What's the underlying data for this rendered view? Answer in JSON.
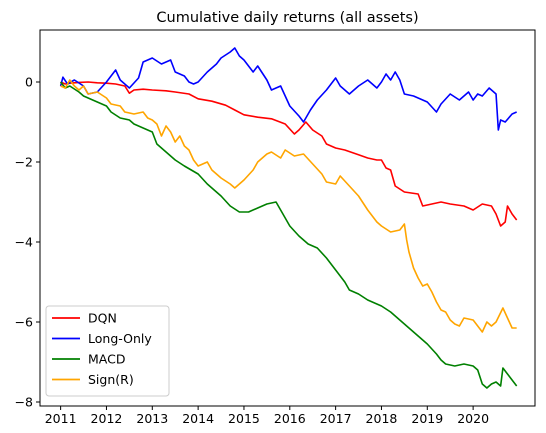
{
  "chart_data": {
    "type": "line",
    "title": "Cumulative daily returns (all assets)",
    "xlabel": "",
    "ylabel": "",
    "x_ticks": [
      "2011",
      "2012",
      "2013",
      "2014",
      "2015",
      "2016",
      "2017",
      "2018",
      "2019",
      "2020"
    ],
    "y_ticks": [
      "0",
      "−2",
      "−4",
      "−6",
      "−8"
    ],
    "xlim": [
      2010.55,
      2021.35
    ],
    "ylim": [
      -8.1,
      1.3
    ],
    "grid": false,
    "legend_position": "lower-left",
    "series": [
      {
        "name": "DQN",
        "color": "#ff0000",
        "points": [
          [
            2011.0,
            0.0
          ],
          [
            2011.1,
            -0.05
          ],
          [
            2011.2,
            -0.03
          ],
          [
            2011.4,
            -0.01
          ],
          [
            2011.6,
            0.0
          ],
          [
            2011.8,
            -0.02
          ],
          [
            2012.0,
            -0.03
          ],
          [
            2012.2,
            -0.05
          ],
          [
            2012.4,
            -0.1
          ],
          [
            2012.5,
            -0.28
          ],
          [
            2012.6,
            -0.2
          ],
          [
            2012.8,
            -0.18
          ],
          [
            2013.0,
            -0.2
          ],
          [
            2013.3,
            -0.22
          ],
          [
            2013.5,
            -0.25
          ],
          [
            2013.8,
            -0.3
          ],
          [
            2014.0,
            -0.42
          ],
          [
            2014.3,
            -0.48
          ],
          [
            2014.6,
            -0.58
          ],
          [
            2014.8,
            -0.7
          ],
          [
            2015.0,
            -0.82
          ],
          [
            2015.3,
            -0.88
          ],
          [
            2015.6,
            -0.92
          ],
          [
            2015.9,
            -1.05
          ],
          [
            2016.1,
            -1.3
          ],
          [
            2016.2,
            -1.2
          ],
          [
            2016.35,
            -1.0
          ],
          [
            2016.5,
            -1.2
          ],
          [
            2016.7,
            -1.35
          ],
          [
            2016.8,
            -1.55
          ],
          [
            2017.0,
            -1.65
          ],
          [
            2017.2,
            -1.7
          ],
          [
            2017.5,
            -1.82
          ],
          [
            2017.7,
            -1.9
          ],
          [
            2017.9,
            -1.95
          ],
          [
            2018.0,
            -1.95
          ],
          [
            2018.1,
            -2.15
          ],
          [
            2018.2,
            -2.2
          ],
          [
            2018.3,
            -2.6
          ],
          [
            2018.5,
            -2.75
          ],
          [
            2018.8,
            -2.8
          ],
          [
            2018.9,
            -3.1
          ],
          [
            2019.1,
            -3.05
          ],
          [
            2019.3,
            -3.0
          ],
          [
            2019.5,
            -3.05
          ],
          [
            2019.8,
            -3.1
          ],
          [
            2020.0,
            -3.2
          ],
          [
            2020.2,
            -3.05
          ],
          [
            2020.4,
            -3.1
          ],
          [
            2020.5,
            -3.3
          ],
          [
            2020.6,
            -3.6
          ],
          [
            2020.7,
            -3.5
          ],
          [
            2020.75,
            -3.1
          ],
          [
            2020.85,
            -3.3
          ],
          [
            2020.95,
            -3.45
          ]
        ]
      },
      {
        "name": "Long-Only",
        "color": "#0000ff",
        "points": [
          [
            2011.0,
            -0.1
          ],
          [
            2011.05,
            0.12
          ],
          [
            2011.15,
            -0.05
          ],
          [
            2011.3,
            0.05
          ],
          [
            2011.5,
            -0.1
          ],
          [
            2011.6,
            -0.3
          ],
          [
            2011.8,
            -0.25
          ],
          [
            2012.0,
            0.0
          ],
          [
            2012.2,
            0.3
          ],
          [
            2012.3,
            0.05
          ],
          [
            2012.5,
            -0.15
          ],
          [
            2012.7,
            0.1
          ],
          [
            2012.8,
            0.5
          ],
          [
            2013.0,
            0.6
          ],
          [
            2013.2,
            0.45
          ],
          [
            2013.4,
            0.55
          ],
          [
            2013.5,
            0.25
          ],
          [
            2013.7,
            0.15
          ],
          [
            2013.8,
            0.0
          ],
          [
            2013.9,
            -0.05
          ],
          [
            2014.0,
            0.0
          ],
          [
            2014.2,
            0.25
          ],
          [
            2014.4,
            0.45
          ],
          [
            2014.5,
            0.6
          ],
          [
            2014.7,
            0.75
          ],
          [
            2014.8,
            0.85
          ],
          [
            2014.9,
            0.65
          ],
          [
            2015.0,
            0.55
          ],
          [
            2015.2,
            0.25
          ],
          [
            2015.3,
            0.4
          ],
          [
            2015.5,
            0.05
          ],
          [
            2015.6,
            -0.2
          ],
          [
            2015.8,
            -0.1
          ],
          [
            2016.0,
            -0.6
          ],
          [
            2016.2,
            -0.85
          ],
          [
            2016.3,
            -1.0
          ],
          [
            2016.45,
            -0.7
          ],
          [
            2016.6,
            -0.45
          ],
          [
            2016.8,
            -0.2
          ],
          [
            2017.0,
            0.1
          ],
          [
            2017.1,
            -0.1
          ],
          [
            2017.3,
            -0.3
          ],
          [
            2017.5,
            -0.1
          ],
          [
            2017.7,
            0.05
          ],
          [
            2017.9,
            -0.15
          ],
          [
            2018.0,
            0.0
          ],
          [
            2018.1,
            0.2
          ],
          [
            2018.2,
            0.05
          ],
          [
            2018.3,
            0.25
          ],
          [
            2018.4,
            0.05
          ],
          [
            2018.5,
            -0.3
          ],
          [
            2018.7,
            -0.35
          ],
          [
            2018.8,
            -0.4
          ],
          [
            2019.0,
            -0.5
          ],
          [
            2019.2,
            -0.75
          ],
          [
            2019.3,
            -0.55
          ],
          [
            2019.5,
            -0.3
          ],
          [
            2019.7,
            -0.45
          ],
          [
            2019.9,
            -0.25
          ],
          [
            2020.0,
            -0.45
          ],
          [
            2020.1,
            -0.3
          ],
          [
            2020.2,
            -0.35
          ],
          [
            2020.35,
            -0.15
          ],
          [
            2020.45,
            -0.25
          ],
          [
            2020.5,
            -0.3
          ],
          [
            2020.55,
            -1.2
          ],
          [
            2020.6,
            -0.95
          ],
          [
            2020.7,
            -1.0
          ],
          [
            2020.85,
            -0.8
          ],
          [
            2020.95,
            -0.75
          ]
        ]
      },
      {
        "name": "MACD",
        "color": "#008000",
        "points": [
          [
            2011.0,
            0.0
          ],
          [
            2011.1,
            -0.15
          ],
          [
            2011.2,
            -0.1
          ],
          [
            2011.4,
            -0.25
          ],
          [
            2011.5,
            -0.35
          ],
          [
            2011.7,
            -0.45
          ],
          [
            2011.8,
            -0.5
          ],
          [
            2012.0,
            -0.6
          ],
          [
            2012.1,
            -0.75
          ],
          [
            2012.3,
            -0.9
          ],
          [
            2012.5,
            -0.95
          ],
          [
            2012.6,
            -1.05
          ],
          [
            2012.8,
            -1.15
          ],
          [
            2013.0,
            -1.25
          ],
          [
            2013.1,
            -1.55
          ],
          [
            2013.3,
            -1.75
          ],
          [
            2013.5,
            -1.95
          ],
          [
            2013.7,
            -2.1
          ],
          [
            2014.0,
            -2.3
          ],
          [
            2014.2,
            -2.55
          ],
          [
            2014.5,
            -2.85
          ],
          [
            2014.7,
            -3.1
          ],
          [
            2014.9,
            -3.25
          ],
          [
            2015.1,
            -3.25
          ],
          [
            2015.3,
            -3.15
          ],
          [
            2015.5,
            -3.05
          ],
          [
            2015.7,
            -3.0
          ],
          [
            2015.8,
            -3.2
          ],
          [
            2016.0,
            -3.6
          ],
          [
            2016.2,
            -3.85
          ],
          [
            2016.4,
            -4.05
          ],
          [
            2016.6,
            -4.15
          ],
          [
            2016.8,
            -4.4
          ],
          [
            2017.0,
            -4.7
          ],
          [
            2017.2,
            -5.0
          ],
          [
            2017.3,
            -5.2
          ],
          [
            2017.5,
            -5.3
          ],
          [
            2017.7,
            -5.45
          ],
          [
            2017.9,
            -5.55
          ],
          [
            2018.0,
            -5.6
          ],
          [
            2018.2,
            -5.75
          ],
          [
            2018.4,
            -5.95
          ],
          [
            2018.6,
            -6.15
          ],
          [
            2018.8,
            -6.35
          ],
          [
            2019.0,
            -6.55
          ],
          [
            2019.2,
            -6.8
          ],
          [
            2019.3,
            -6.95
          ],
          [
            2019.4,
            -7.05
          ],
          [
            2019.6,
            -7.1
          ],
          [
            2019.8,
            -7.05
          ],
          [
            2020.0,
            -7.1
          ],
          [
            2020.1,
            -7.2
          ],
          [
            2020.2,
            -7.55
          ],
          [
            2020.3,
            -7.65
          ],
          [
            2020.4,
            -7.55
          ],
          [
            2020.5,
            -7.5
          ],
          [
            2020.6,
            -7.6
          ],
          [
            2020.65,
            -7.15
          ],
          [
            2020.75,
            -7.3
          ],
          [
            2020.85,
            -7.45
          ],
          [
            2020.95,
            -7.6
          ]
        ]
      },
      {
        "name": "Sign(R)",
        "color": "#ffa500",
        "points": [
          [
            2011.0,
            -0.1
          ],
          [
            2011.1,
            -0.15
          ],
          [
            2011.2,
            0.05
          ],
          [
            2011.3,
            -0.1
          ],
          [
            2011.4,
            -0.2
          ],
          [
            2011.5,
            -0.1
          ],
          [
            2011.6,
            -0.3
          ],
          [
            2011.8,
            -0.25
          ],
          [
            2012.0,
            -0.4
          ],
          [
            2012.1,
            -0.55
          ],
          [
            2012.3,
            -0.6
          ],
          [
            2012.4,
            -0.75
          ],
          [
            2012.6,
            -0.8
          ],
          [
            2012.8,
            -0.75
          ],
          [
            2012.9,
            -0.9
          ],
          [
            2013.0,
            -0.95
          ],
          [
            2013.1,
            -1.05
          ],
          [
            2013.2,
            -1.35
          ],
          [
            2013.3,
            -1.1
          ],
          [
            2013.4,
            -1.25
          ],
          [
            2013.5,
            -1.5
          ],
          [
            2013.6,
            -1.35
          ],
          [
            2013.7,
            -1.6
          ],
          [
            2013.8,
            -1.7
          ],
          [
            2013.9,
            -1.95
          ],
          [
            2014.0,
            -2.1
          ],
          [
            2014.2,
            -2.0
          ],
          [
            2014.3,
            -2.2
          ],
          [
            2014.5,
            -2.4
          ],
          [
            2014.7,
            -2.55
          ],
          [
            2014.8,
            -2.65
          ],
          [
            2015.0,
            -2.45
          ],
          [
            2015.2,
            -2.2
          ],
          [
            2015.3,
            -2.0
          ],
          [
            2015.5,
            -1.8
          ],
          [
            2015.6,
            -1.75
          ],
          [
            2015.8,
            -1.9
          ],
          [
            2015.9,
            -1.7
          ],
          [
            2016.1,
            -1.85
          ],
          [
            2016.3,
            -1.8
          ],
          [
            2016.5,
            -2.05
          ],
          [
            2016.7,
            -2.3
          ],
          [
            2016.8,
            -2.5
          ],
          [
            2017.0,
            -2.55
          ],
          [
            2017.1,
            -2.35
          ],
          [
            2017.3,
            -2.6
          ],
          [
            2017.5,
            -2.85
          ],
          [
            2017.7,
            -3.2
          ],
          [
            2017.9,
            -3.5
          ],
          [
            2018.0,
            -3.6
          ],
          [
            2018.2,
            -3.75
          ],
          [
            2018.4,
            -3.7
          ],
          [
            2018.5,
            -3.55
          ],
          [
            2018.55,
            -3.95
          ],
          [
            2018.6,
            -4.25
          ],
          [
            2018.7,
            -4.65
          ],
          [
            2018.8,
            -4.9
          ],
          [
            2018.9,
            -5.1
          ],
          [
            2019.0,
            -5.05
          ],
          [
            2019.1,
            -5.25
          ],
          [
            2019.2,
            -5.5
          ],
          [
            2019.3,
            -5.7
          ],
          [
            2019.4,
            -5.75
          ],
          [
            2019.5,
            -5.95
          ],
          [
            2019.6,
            -6.05
          ],
          [
            2019.7,
            -6.1
          ],
          [
            2019.8,
            -5.9
          ],
          [
            2020.0,
            -5.95
          ],
          [
            2020.1,
            -6.1
          ],
          [
            2020.2,
            -6.25
          ],
          [
            2020.3,
            -6.0
          ],
          [
            2020.4,
            -6.1
          ],
          [
            2020.5,
            -6.0
          ],
          [
            2020.65,
            -5.65
          ],
          [
            2020.75,
            -5.9
          ],
          [
            2020.85,
            -6.15
          ],
          [
            2020.95,
            -6.15
          ]
        ]
      }
    ]
  }
}
